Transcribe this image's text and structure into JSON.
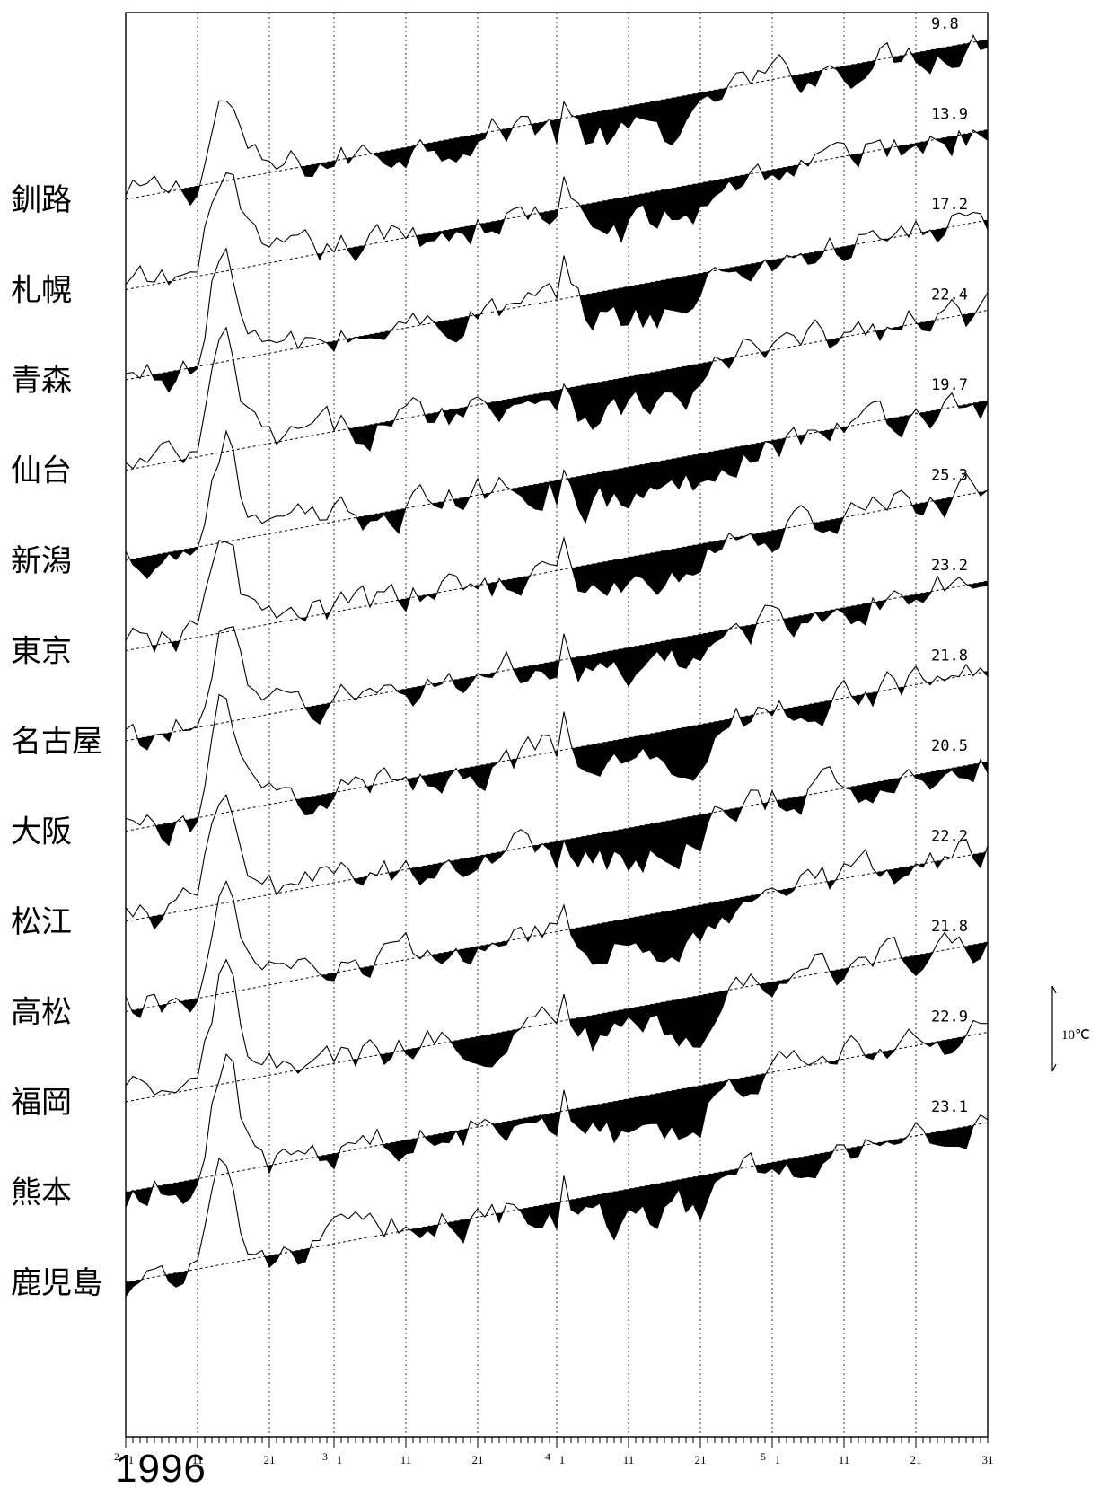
{
  "chart_data": {
    "type": "line",
    "year": "1996",
    "scale_label": "10℃",
    "scale_degrees": 10,
    "x_axis": {
      "months": [
        {
          "month": "2",
          "days": 29
        },
        {
          "month": "3",
          "days": 31
        },
        {
          "month": "4",
          "days": 30
        },
        {
          "month": "5",
          "days": 31
        }
      ],
      "day_labels": [
        "1",
        "11",
        "21"
      ],
      "last_label": "31"
    },
    "series_style": {
      "daily": "thin solid line",
      "normal": "dashed line",
      "below_normal_fill": "#000000"
    },
    "series": [
      {
        "name": "釧路",
        "end_value": "9.8"
      },
      {
        "name": "札幌",
        "end_value": "13.9"
      },
      {
        "name": "青森",
        "end_value": "17.2"
      },
      {
        "name": "仙台",
        "end_value": "22.4"
      },
      {
        "name": "新潟",
        "end_value": "19.7"
      },
      {
        "name": "東京",
        "end_value": "25.3"
      },
      {
        "name": "名古屋",
        "end_value": "23.2"
      },
      {
        "name": "大阪",
        "end_value": "21.8"
      },
      {
        "name": "松江",
        "end_value": "20.5"
      },
      {
        "name": "高松",
        "end_value": "22.2"
      },
      {
        "name": "福岡",
        "end_value": "21.8"
      },
      {
        "name": "熊本",
        "end_value": "22.9"
      },
      {
        "name": "鹿児島",
        "end_value": "23.1"
      }
    ]
  }
}
